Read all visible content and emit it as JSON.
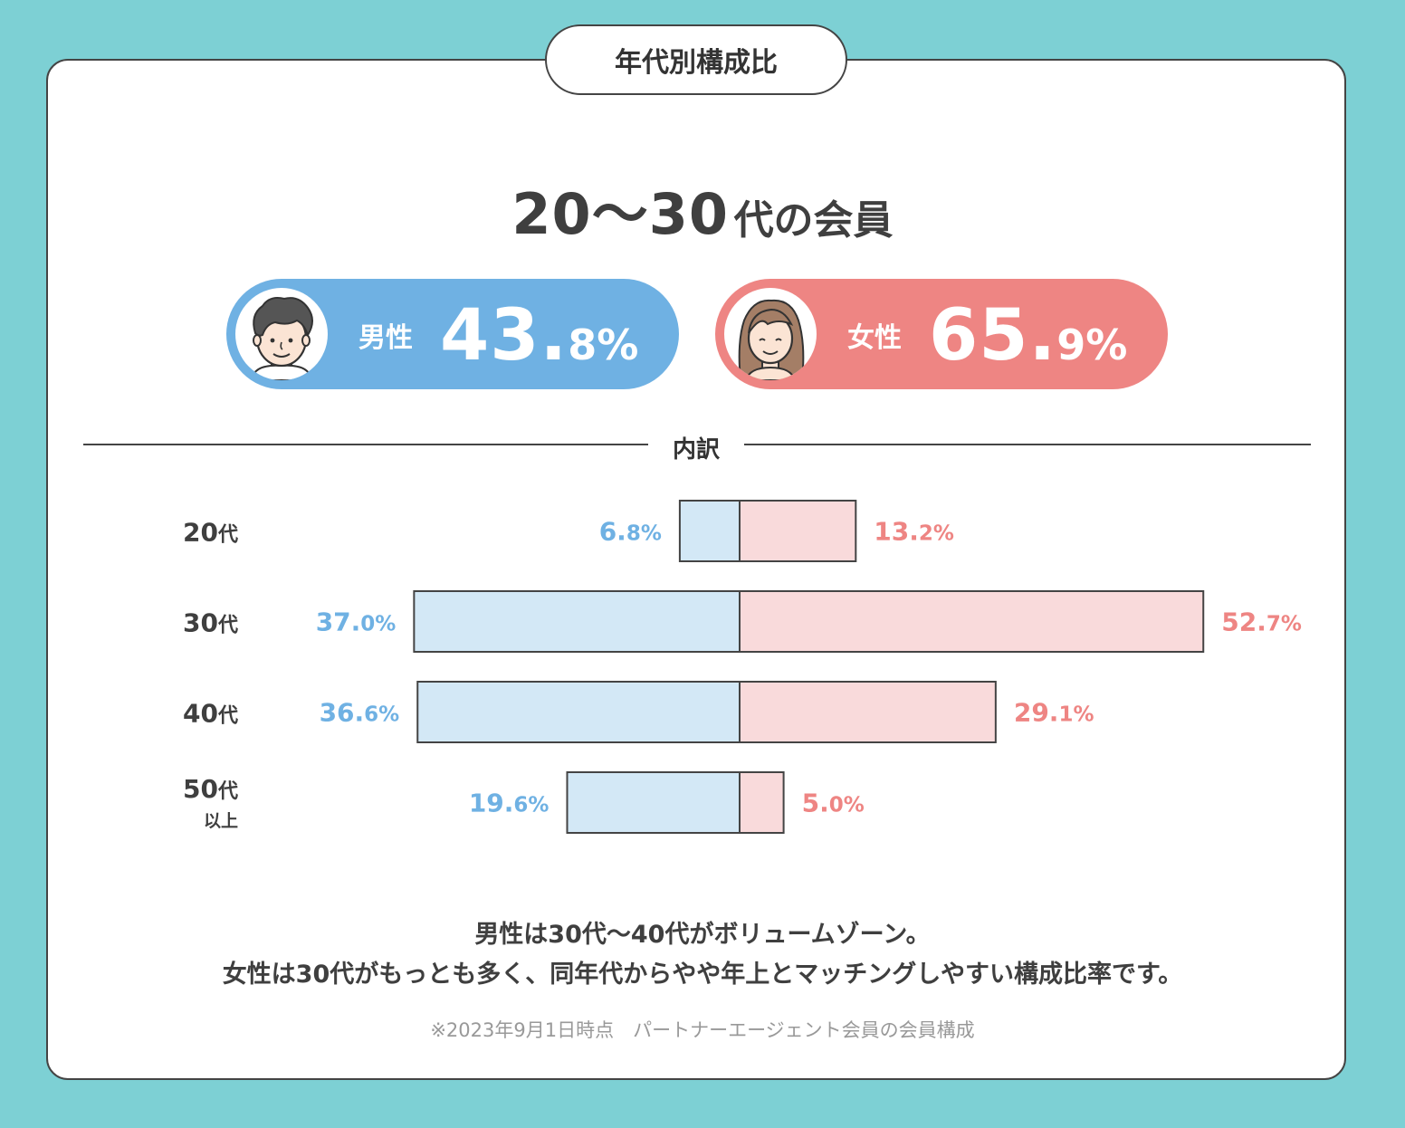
{
  "tag": "年代別構成比",
  "headline": {
    "range": "20〜30",
    "suffix": "代の会員"
  },
  "male": {
    "label": "男性",
    "value_big": "43.",
    "value_small": "8%"
  },
  "female": {
    "label": "女性",
    "value_big": "65.",
    "value_small": "9%"
  },
  "breakdown_label": "内訳",
  "chart_data": {
    "type": "bar",
    "orientation": "horizontal-diverging",
    "categories": [
      "20代",
      "30代",
      "40代",
      "50代"
    ],
    "category_sublabels": [
      "",
      "",
      "",
      "以上"
    ],
    "series": [
      {
        "name": "男性",
        "values": [
          6.8,
          37.0,
          36.6,
          19.6
        ],
        "labels": [
          "6.8%",
          "37.0%",
          "36.6%",
          "19.6%"
        ]
      },
      {
        "name": "女性",
        "values": [
          13.2,
          52.7,
          29.1,
          5.0
        ],
        "labels": [
          "13.2%",
          "52.7%",
          "29.1%",
          "5.0%"
        ]
      }
    ],
    "colors": {
      "male_text": "#6fb1e3",
      "female_text": "#ee8583",
      "male_fill": "#d3e8f6",
      "female_fill": "#f9dadb",
      "stroke": "#444444"
    }
  },
  "notes": [
    "男性は30代〜40代がボリュームゾーン。",
    "女性は30代がもっとも多く、同年代からやや年上とマッチングしやすい構成比率です。"
  ],
  "footnote": "※2023年9月1日時点　パートナーエージェント会員の会員構成"
}
